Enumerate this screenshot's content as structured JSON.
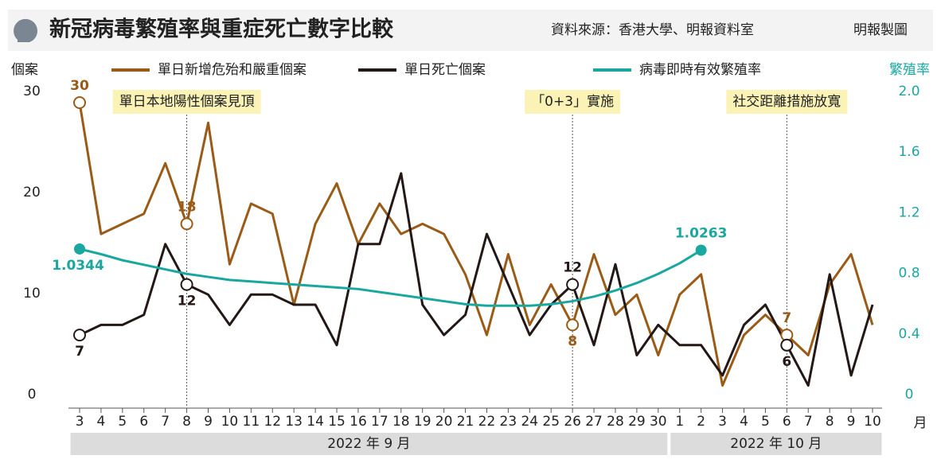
{
  "chart_data": {
    "type": "line",
    "title": "新冠病毒繁殖率與重症死亡數字比較",
    "source": "資料來源：香港大學、明報資料室",
    "credit": "明報製圖",
    "ylabel": "個案",
    "y2label": "繁殖率",
    "xlabel": "月",
    "categories": [
      "3",
      "4",
      "5",
      "6",
      "7",
      "8",
      "9",
      "10",
      "11",
      "12",
      "13",
      "14",
      "15",
      "16",
      "17",
      "18",
      "19",
      "20",
      "21",
      "22",
      "23",
      "24",
      "25",
      "26",
      "27",
      "28",
      "29",
      "30",
      "1",
      "2",
      "3",
      "4",
      "5",
      "6",
      "7",
      "8",
      "9",
      "10"
    ],
    "groups": [
      {
        "label": "2022 年 9 月",
        "count": 28
      },
      {
        "label": "2022 年 10 月",
        "count": 10
      }
    ],
    "ylim": [
      0,
      30
    ],
    "yticks": [
      0,
      10,
      20,
      30
    ],
    "y2lim": [
      0,
      2.0
    ],
    "y2ticks": [
      {
        "value": 0,
        "label": "0"
      },
      0.4,
      0.8,
      1.2,
      1.6,
      {
        "value": 2.0,
        "label": "2.0"
      }
    ],
    "annotations": [
      {
        "text": "單日本地陽性個案見頂",
        "index": 5
      },
      {
        "text": "「0+3」實施",
        "index": 23
      },
      {
        "text": "社交距離措施放寬",
        "index": 33
      }
    ],
    "series": [
      {
        "name": "單日新增危殆和嚴重個案",
        "color": "#9a5b17",
        "values": [
          30,
          17,
          18,
          19,
          24,
          18,
          28,
          14,
          20,
          19,
          10,
          18,
          22,
          16,
          20,
          17,
          18,
          17,
          13,
          7,
          15,
          8,
          12,
          8,
          15,
          9,
          11,
          5,
          11,
          13,
          2,
          7,
          9,
          7,
          5,
          12,
          15,
          8
        ],
        "value_labels": [
          "30",
          null,
          null,
          null,
          null,
          "18",
          null,
          null,
          null,
          null,
          null,
          null,
          null,
          null,
          null,
          null,
          null,
          null,
          null,
          null,
          null,
          null,
          null,
          "8",
          null,
          null,
          null,
          null,
          null,
          null,
          null,
          null,
          null,
          "7",
          null,
          null,
          null,
          null
        ]
      },
      {
        "name": "單日死亡個案",
        "color": "#231815",
        "values": [
          7,
          8,
          8,
          9,
          16,
          12,
          11,
          8,
          11,
          11,
          10,
          10,
          6,
          16,
          16,
          23,
          10,
          7,
          9,
          17,
          12,
          7,
          10,
          12,
          6,
          14,
          5,
          8,
          6,
          6,
          3,
          8,
          10,
          6,
          2,
          13,
          3,
          10
        ],
        "value_labels": [
          "7",
          null,
          null,
          null,
          null,
          "12",
          null,
          null,
          null,
          null,
          null,
          null,
          null,
          null,
          null,
          null,
          null,
          null,
          null,
          null,
          null,
          null,
          null,
          "12",
          null,
          null,
          null,
          null,
          null,
          null,
          null,
          null,
          null,
          "6",
          null,
          null,
          null,
          null
        ]
      },
      {
        "name": "病毒即時有效繁殖率",
        "color": "#1aa7a0",
        "axis": "y2",
        "values": [
          1.0344,
          1.0,
          0.96,
          0.93,
          0.9,
          0.87,
          0.85,
          0.83,
          0.82,
          0.81,
          0.8,
          0.79,
          0.78,
          0.77,
          0.75,
          0.73,
          0.71,
          0.69,
          0.67,
          0.66,
          0.66,
          0.66,
          0.67,
          0.69,
          0.72,
          0.76,
          0.81,
          0.87,
          0.94,
          1.0263,
          null,
          null,
          null,
          null,
          null,
          null,
          null,
          null
        ],
        "value_labels": [
          "1.0344",
          null,
          null,
          null,
          null,
          null,
          null,
          null,
          null,
          null,
          null,
          null,
          null,
          null,
          null,
          null,
          null,
          null,
          null,
          null,
          null,
          null,
          null,
          null,
          null,
          null,
          null,
          null,
          null,
          "1.0263",
          null,
          null,
          null,
          null,
          null,
          null,
          null,
          null
        ]
      }
    ]
  }
}
